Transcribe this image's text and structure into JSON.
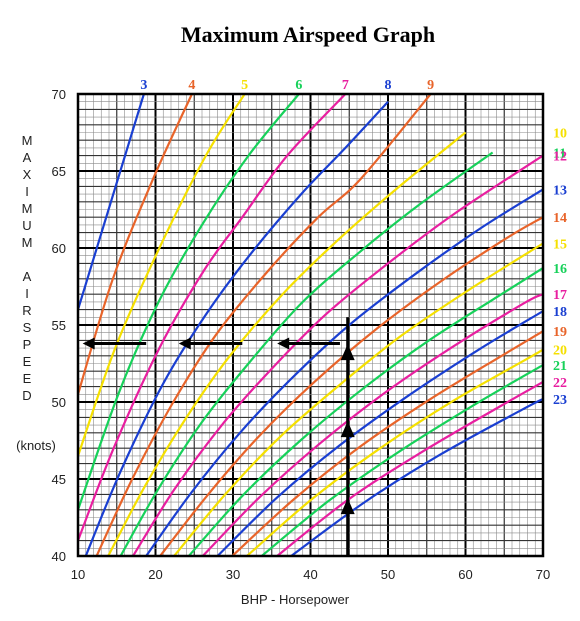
{
  "chart_data": {
    "type": "line",
    "title": "Maximum Airspeed Graph",
    "xlabel": "BHP - Horsepower",
    "ylabel_letters": [
      "M",
      "A",
      "X",
      "I",
      "M",
      "U",
      "M",
      "",
      "A",
      "I",
      "R",
      "S",
      "P",
      "E",
      "E",
      "D"
    ],
    "ylabel_unit": "(knots)",
    "xlim": [
      10,
      70
    ],
    "ylim": [
      40,
      70
    ],
    "x_ticks": [
      10,
      20,
      30,
      40,
      50,
      60,
      70
    ],
    "y_ticks": [
      40,
      45,
      50,
      55,
      60,
      65,
      70
    ],
    "grid": true,
    "series": [
      {
        "name": "3",
        "color": "#1a3fd1",
        "x": [
          10.0,
          18.5
        ],
        "y": [
          56.0,
          70.0
        ]
      },
      {
        "name": "4",
        "color": "#e8642a",
        "x": [
          10.0,
          14.5,
          19.7,
          24.7
        ],
        "y": [
          50.5,
          58.0,
          64.5,
          70.0
        ]
      },
      {
        "name": "5",
        "color": "#f5e000",
        "x": [
          10.0,
          14.8,
          20.5,
          26.5,
          31.5
        ],
        "y": [
          46.5,
          53.5,
          60.0,
          66.0,
          70.0
        ]
      },
      {
        "name": "6",
        "color": "#17d15a",
        "x": [
          10.0,
          15.2,
          20.4,
          26.0,
          32.0,
          38.5
        ],
        "y": [
          43.0,
          50.5,
          56.5,
          61.5,
          66.0,
          70.0
        ]
      },
      {
        "name": "7",
        "color": "#e81fa0",
        "x": [
          10.0,
          14.6,
          20.5,
          26.2,
          31.2,
          37.0,
          44.5
        ],
        "y": [
          41.0,
          47.0,
          53.5,
          58.5,
          62.0,
          66.0,
          70.0
        ]
      },
      {
        "name": "8",
        "color": "#1a3fd1",
        "x": [
          11.0,
          15.5,
          21.0,
          26.4,
          32.1,
          38.8,
          44.5,
          50.0
        ],
        "y": [
          40.0,
          45.5,
          51.2,
          55.6,
          59.5,
          63.5,
          66.5,
          69.5
        ]
      },
      {
        "name": "9",
        "color": "#e8642a",
        "x": [
          12.4,
          17.0,
          22.3,
          28.0,
          34.5,
          41.0,
          46.5,
          55.5
        ],
        "y": [
          40.0,
          45.0,
          50.0,
          54.5,
          58.5,
          62.0,
          64.5,
          70.0
        ]
      },
      {
        "name": "10",
        "color": "#f5e000",
        "x": [
          13.9,
          18.6,
          24.0,
          29.6,
          36.4,
          43.5,
          51.0,
          60.0
        ],
        "y": [
          40.0,
          44.5,
          49.0,
          53.0,
          57.0,
          60.5,
          63.8,
          67.5
        ]
      },
      {
        "name": "11",
        "color": "#17d15a",
        "x": [
          15.5,
          20.3,
          26.0,
          32.0,
          39.0,
          46.5,
          54.0,
          63.5
        ],
        "y": [
          40.0,
          44.3,
          48.7,
          52.5,
          56.5,
          59.8,
          62.8,
          66.2
        ]
      },
      {
        "name": "12",
        "color": "#e81fa0",
        "x": [
          17.1,
          22.4,
          28.4,
          34.7,
          42.0,
          50.0,
          58.5,
          70.0
        ],
        "y": [
          40.0,
          44.3,
          48.4,
          52.0,
          55.7,
          59.0,
          62.2,
          66.0
        ]
      },
      {
        "name": "13",
        "color": "#1a3fd1",
        "x": [
          18.8,
          24.6,
          30.9,
          37.5,
          45.0,
          53.5,
          62.0,
          70.0
        ],
        "y": [
          40.0,
          44.1,
          48.0,
          51.5,
          55.0,
          58.3,
          61.3,
          63.8
        ]
      },
      {
        "name": "14",
        "color": "#e8642a",
        "x": [
          20.6,
          26.8,
          33.4,
          40.5,
          48.4,
          57.0,
          65.5,
          70.0
        ],
        "y": [
          40.0,
          44.0,
          47.8,
          51.3,
          54.7,
          57.9,
          60.7,
          62.0
        ]
      },
      {
        "name": "15",
        "color": "#f5e000",
        "x": [
          22.4,
          29.0,
          36.0,
          43.5,
          51.7,
          60.5,
          70.0
        ],
        "y": [
          40.0,
          44.0,
          47.7,
          51.0,
          54.3,
          57.3,
          60.3
        ]
      },
      {
        "name": "16",
        "color": "#17d15a",
        "x": [
          24.3,
          31.2,
          38.7,
          46.6,
          55.0,
          64.0,
          70.0
        ],
        "y": [
          40.0,
          43.9,
          47.5,
          50.8,
          53.9,
          56.8,
          58.7
        ]
      },
      {
        "name": "17",
        "color": "#e81fa0",
        "x": [
          26.1,
          33.4,
          41.2,
          49.6,
          58.4,
          67.5,
          70.0
        ],
        "y": [
          40.0,
          43.8,
          47.3,
          50.6,
          53.6,
          56.4,
          57.0
        ]
      },
      {
        "name": "18",
        "color": "#1a3fd1",
        "x": [
          28.0,
          35.7,
          43.8,
          52.6,
          61.7,
          70.0
        ],
        "y": [
          40.0,
          43.8,
          47.2,
          50.4,
          53.4,
          55.9
        ]
      },
      {
        "name": "19",
        "color": "#e8642a",
        "x": [
          29.9,
          37.9,
          46.4,
          55.5,
          65.0,
          70.0
        ],
        "y": [
          40.0,
          43.7,
          47.1,
          50.2,
          53.1,
          54.6
        ]
      },
      {
        "name": "20",
        "color": "#f5e000",
        "x": [
          31.8,
          40.2,
          49.0,
          58.5,
          68.3,
          70.0
        ],
        "y": [
          40.0,
          43.7,
          47.0,
          50.1,
          52.9,
          53.4
        ]
      },
      {
        "name": "21",
        "color": "#17d15a",
        "x": [
          33.7,
          42.4,
          51.5,
          61.4,
          70.0
        ],
        "y": [
          40.0,
          43.6,
          46.8,
          49.9,
          52.4
        ]
      },
      {
        "name": "22",
        "color": "#e81fa0",
        "x": [
          35.7,
          44.7,
          54.2,
          64.4,
          70.0
        ],
        "y": [
          40.0,
          43.6,
          46.7,
          49.7,
          51.3
        ]
      },
      {
        "name": "23",
        "color": "#1a3fd1",
        "x": [
          37.5,
          47.0,
          56.8,
          67.3,
          70.0
        ],
        "y": [
          40.0,
          43.5,
          46.6,
          49.5,
          50.2
        ]
      }
    ],
    "annotations": {
      "vertical_line": {
        "x": 44.8,
        "y": [
          40,
          55.5
        ]
      },
      "up_arrows": [
        {
          "x": 44.8,
          "y": 43.3
        },
        {
          "x": 44.8,
          "y": 48.3
        },
        {
          "x": 44.8,
          "y": 53.3
        }
      ],
      "left_arrows": [
        {
          "x_from": 43.8,
          "x_to": 35.7,
          "y": 53.8
        },
        {
          "x_from": 31.2,
          "x_to": 23.0,
          "y": 53.8
        },
        {
          "x_from": 18.8,
          "x_to": 10.6,
          "y": 53.8
        }
      ]
    }
  }
}
